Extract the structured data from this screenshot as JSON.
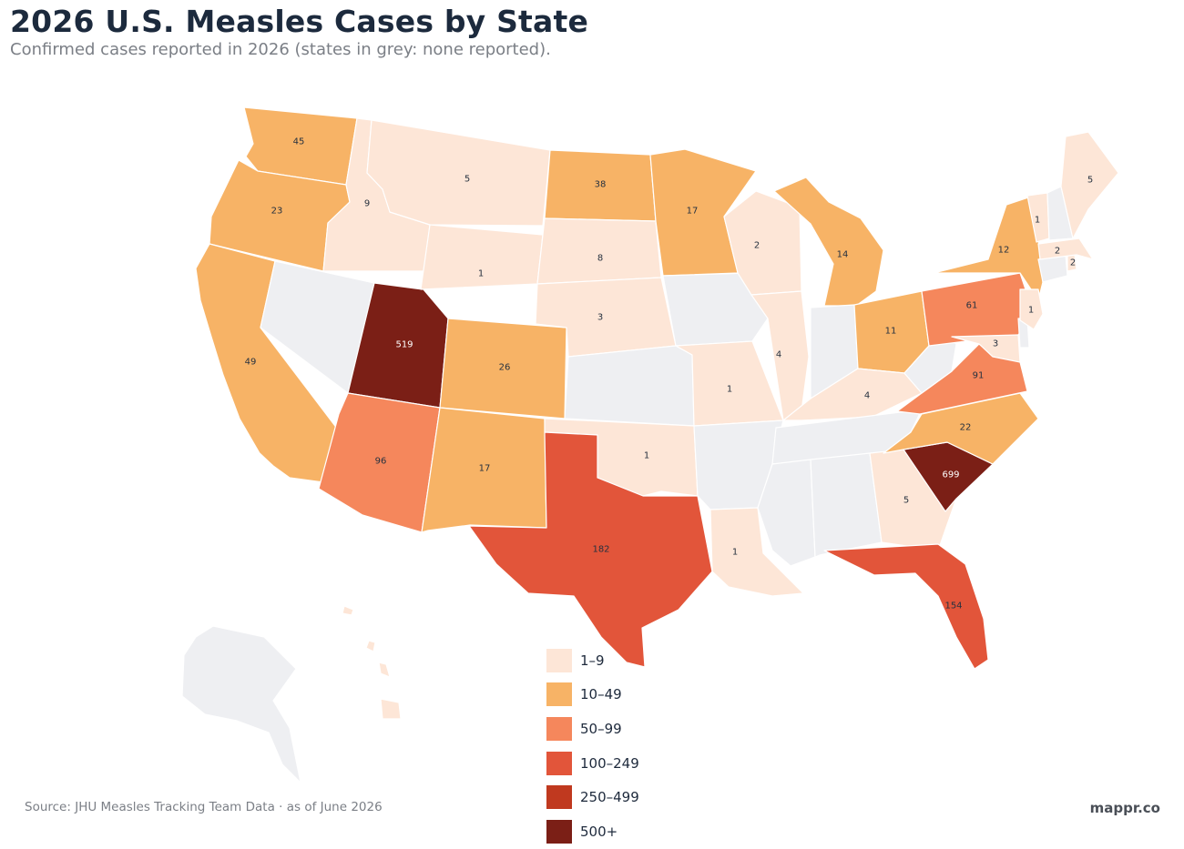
{
  "title": "2026 U.S. Measles Cases by State",
  "subtitle": "Confirmed cases reported in 2026 (states in grey: none reported).",
  "source": "Source: JHU Measles Tracking Team Data · as of June 2026",
  "brand": "mappr.co",
  "colors": {
    "none": "#eeeff2",
    "1-9": "#fde6d7",
    "10-49": "#f7b366",
    "50-99": "#f5875c",
    "100-249": "#e2553a",
    "250-499": "#c0391f",
    "500+": "#7b1f16"
  },
  "legend": [
    {
      "label": "1–9",
      "bucket": "1-9"
    },
    {
      "label": "10–49",
      "bucket": "10-49"
    },
    {
      "label": "50–99",
      "bucket": "50-99"
    },
    {
      "label": "100–249",
      "bucket": "100-249"
    },
    {
      "label": "250–499",
      "bucket": "250-499"
    },
    {
      "label": "500+",
      "bucket": "500+"
    }
  ],
  "states": [
    {
      "code": "WA",
      "cases": 45
    },
    {
      "code": "OR",
      "cases": 23
    },
    {
      "code": "CA",
      "cases": 49
    },
    {
      "code": "ID",
      "cases": 9
    },
    {
      "code": "NV",
      "cases": 0
    },
    {
      "code": "UT",
      "cases": 519
    },
    {
      "code": "AZ",
      "cases": 96
    },
    {
      "code": "MT",
      "cases": 5
    },
    {
      "code": "WY",
      "cases": 1
    },
    {
      "code": "CO",
      "cases": 26
    },
    {
      "code": "NM",
      "cases": 17
    },
    {
      "code": "ND",
      "cases": 38
    },
    {
      "code": "SD",
      "cases": 8
    },
    {
      "code": "NE",
      "cases": 3
    },
    {
      "code": "KS",
      "cases": 0
    },
    {
      "code": "OK",
      "cases": 1
    },
    {
      "code": "TX",
      "cases": 182
    },
    {
      "code": "MN",
      "cases": 17
    },
    {
      "code": "IA",
      "cases": 0
    },
    {
      "code": "MO",
      "cases": 1
    },
    {
      "code": "AR",
      "cases": 0
    },
    {
      "code": "LA",
      "cases": 1
    },
    {
      "code": "WI",
      "cases": 2
    },
    {
      "code": "IL",
      "cases": 4
    },
    {
      "code": "MI",
      "cases": 14
    },
    {
      "code": "IN",
      "cases": 0
    },
    {
      "code": "OH",
      "cases": 11
    },
    {
      "code": "KY",
      "cases": 4
    },
    {
      "code": "TN",
      "cases": 0
    },
    {
      "code": "MS",
      "cases": 0
    },
    {
      "code": "AL",
      "cases": 0
    },
    {
      "code": "GA",
      "cases": 5
    },
    {
      "code": "FL",
      "cases": 154
    },
    {
      "code": "SC",
      "cases": 699
    },
    {
      "code": "NC",
      "cases": 22
    },
    {
      "code": "VA",
      "cases": 91
    },
    {
      "code": "WV",
      "cases": 0
    },
    {
      "code": "PA",
      "cases": 61
    },
    {
      "code": "NY",
      "cases": 12
    },
    {
      "code": "MD",
      "cases": 3
    },
    {
      "code": "DE",
      "cases": 0
    },
    {
      "code": "NJ",
      "cases": 1
    },
    {
      "code": "CT",
      "cases": 0
    },
    {
      "code": "RI",
      "cases": 2
    },
    {
      "code": "MA",
      "cases": 2
    },
    {
      "code": "VT",
      "cases": 1
    },
    {
      "code": "NH",
      "cases": 0
    },
    {
      "code": "ME",
      "cases": 5
    },
    {
      "code": "AK",
      "cases": 0
    },
    {
      "code": "HI",
      "cases": 1
    }
  ]
}
